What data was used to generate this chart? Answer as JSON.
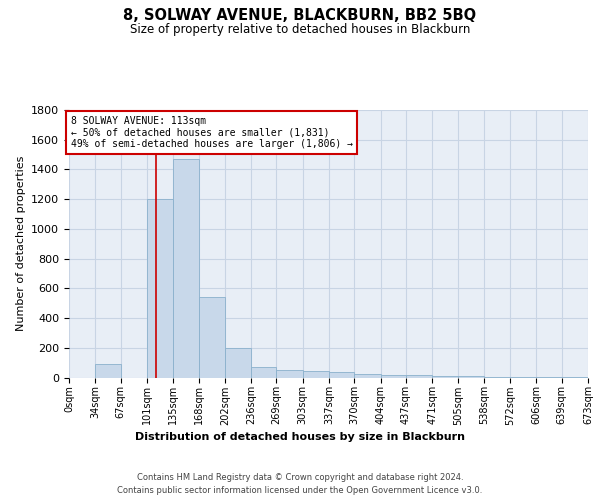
{
  "title": "8, SOLWAY AVENUE, BLACKBURN, BB2 5BQ",
  "subtitle": "Size of property relative to detached houses in Blackburn",
  "xlabel": "Distribution of detached houses by size in Blackburn",
  "ylabel": "Number of detached properties",
  "footer_line1": "Contains HM Land Registry data © Crown copyright and database right 2024.",
  "footer_line2": "Contains public sector information licensed under the Open Government Licence v3.0.",
  "bin_edges": [
    0,
    34,
    67,
    101,
    135,
    168,
    202,
    236,
    269,
    303,
    337,
    370,
    404,
    437,
    471,
    505,
    538,
    572,
    606,
    639,
    673
  ],
  "bin_counts": [
    0,
    90,
    0,
    1200,
    1470,
    540,
    200,
    70,
    50,
    45,
    35,
    25,
    20,
    15,
    10,
    8,
    5,
    3,
    2,
    2
  ],
  "bar_color": "#c8d8ea",
  "bar_edge_color": "#8ab0cc",
  "grid_color": "#c8d4e4",
  "property_size": 113,
  "vline_color": "#cc0000",
  "annotation_text_line1": "8 SOLWAY AVENUE: 113sqm",
  "annotation_text_line2": "← 50% of detached houses are smaller (1,831)",
  "annotation_text_line3": "49% of semi-detached houses are larger (1,806) →",
  "annotation_box_color": "#cc0000",
  "ylim": [
    0,
    1800
  ],
  "background_color": "#e8eef6",
  "tick_labels": [
    "0sqm",
    "34sqm",
    "67sqm",
    "101sqm",
    "135sqm",
    "168sqm",
    "202sqm",
    "236sqm",
    "269sqm",
    "303sqm",
    "337sqm",
    "370sqm",
    "404sqm",
    "437sqm",
    "471sqm",
    "505sqm",
    "538sqm",
    "572sqm",
    "606sqm",
    "639sqm",
    "673sqm"
  ]
}
